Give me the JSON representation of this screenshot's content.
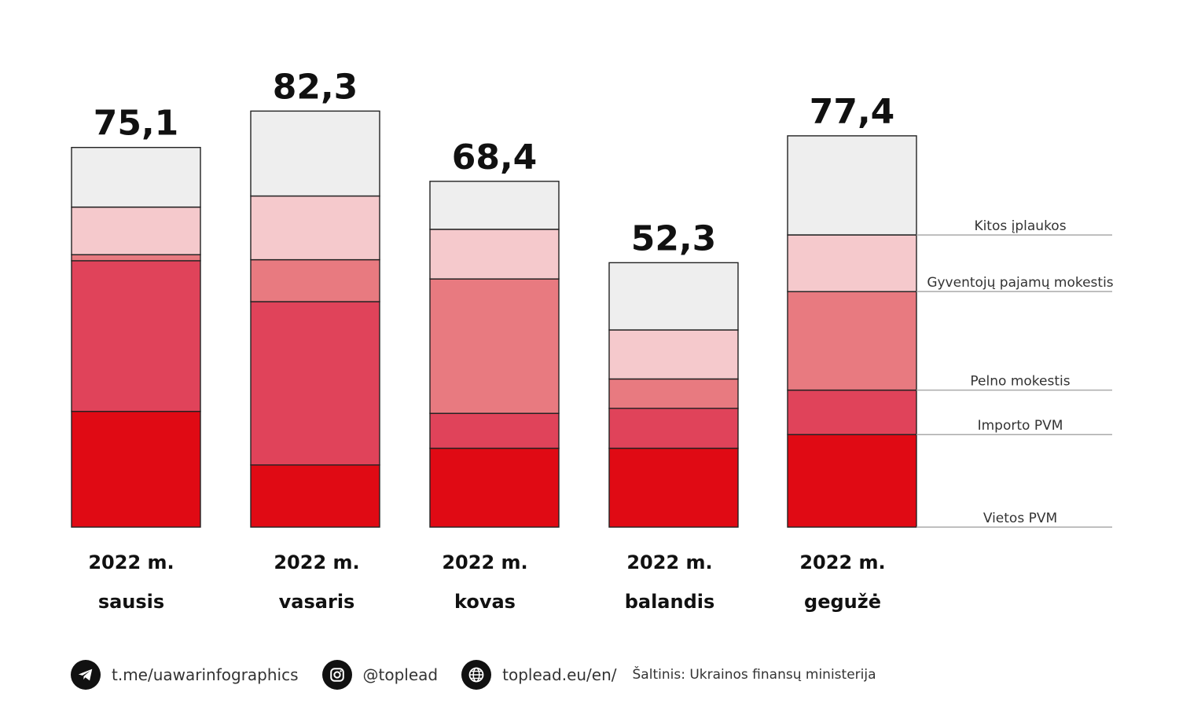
{
  "chart_data": {
    "type": "bar",
    "stacked": true,
    "categories": [
      [
        "2022 m.",
        "sausis"
      ],
      [
        "2022 m.",
        "vasaris"
      ],
      [
        "2022 m.",
        "kovas"
      ],
      [
        "2022 m.",
        "balandis"
      ],
      [
        "2022 m.",
        "gegužė"
      ]
    ],
    "totals": [
      "75,1",
      "82,3",
      "68,4",
      "52,3",
      "77,4"
    ],
    "series": [
      {
        "name": "Vietos PVM",
        "color": "#e00a14",
        "values": [
          22.9,
          12.3,
          15.6,
          15.6,
          18.3
        ]
      },
      {
        "name": "Importo PVM",
        "color": "#e0435a",
        "values": [
          29.8,
          32.3,
          6.9,
          7.9,
          8.8
        ]
      },
      {
        "name": "Pelno mokestis",
        "color": "#e87a80",
        "values": [
          1.2,
          8.3,
          26.6,
          5.8,
          19.5
        ]
      },
      {
        "name": "Gyventojų pajamų mokestis",
        "color": "#f5c9cc",
        "values": [
          9.4,
          12.6,
          9.8,
          9.7,
          11.2
        ]
      },
      {
        "name": "Kitos įplaukos",
        "color": "#eeeeee",
        "values": [
          11.8,
          16.8,
          9.5,
          13.3,
          19.6
        ]
      }
    ],
    "legend_position": "right",
    "grid": false
  },
  "footer": {
    "telegram_icon": "telegram-icon",
    "telegram_text": "t.me/uawarinfographics",
    "instagram_icon": "instagram-icon",
    "instagram_text": "@toplead",
    "globe_icon": "globe-icon",
    "website_text": "toplead.eu/en/",
    "source_text": "Šaltinis: Ukrainos finansų ministerija"
  }
}
